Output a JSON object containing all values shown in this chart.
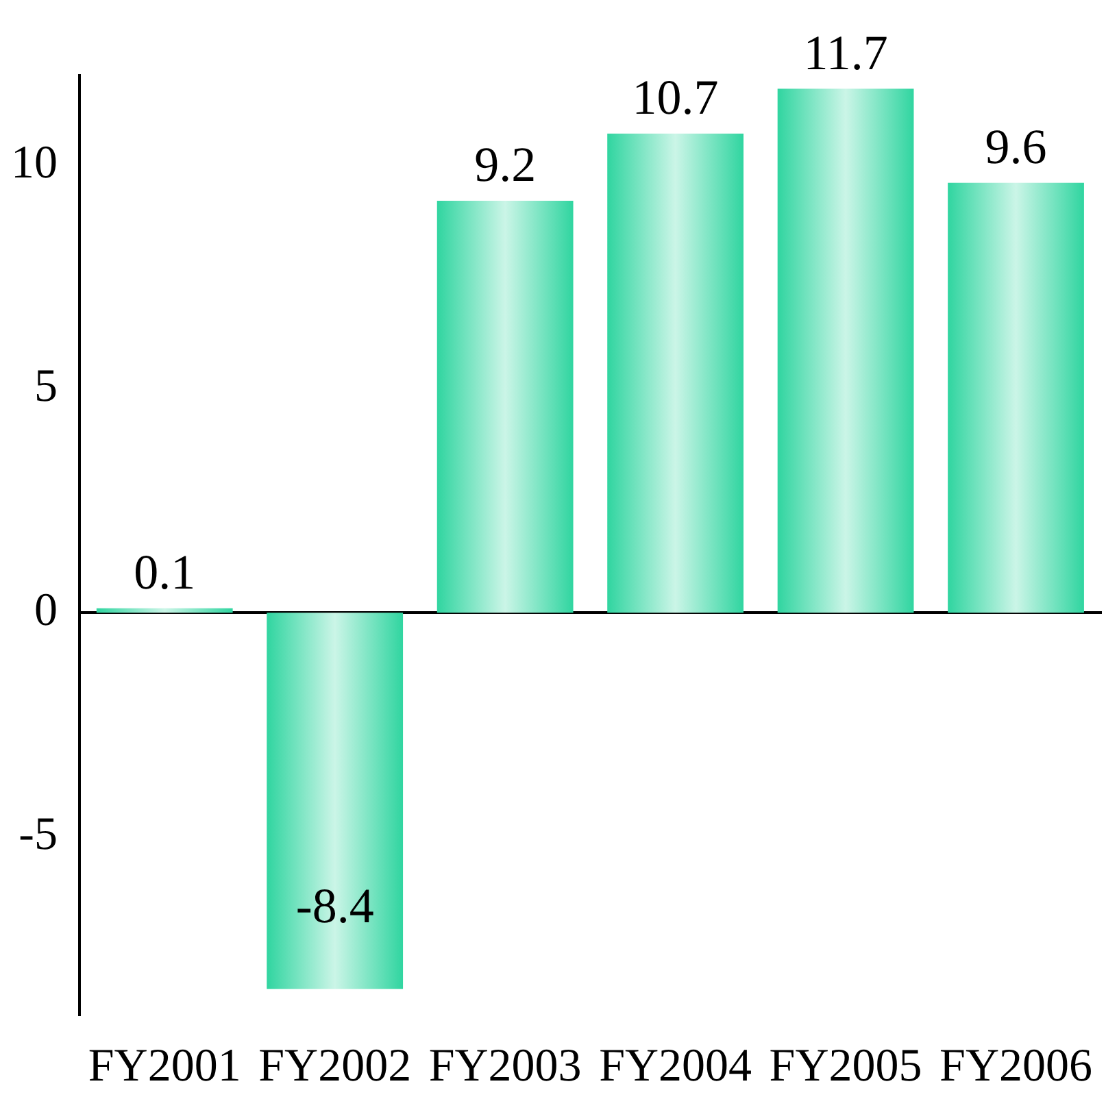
{
  "chart_data": {
    "type": "bar",
    "categories": [
      "FY2001",
      "FY2002",
      "FY2003",
      "FY2004",
      "FY2005",
      "FY2006"
    ],
    "values": [
      0.1,
      -8.4,
      9.2,
      10.7,
      11.7,
      9.6
    ],
    "color": "#30d5a0",
    "ylim": [
      -9,
      12
    ],
    "yticks": [
      -5,
      0,
      5,
      10
    ],
    "legend": false,
    "data_labels": true
  }
}
